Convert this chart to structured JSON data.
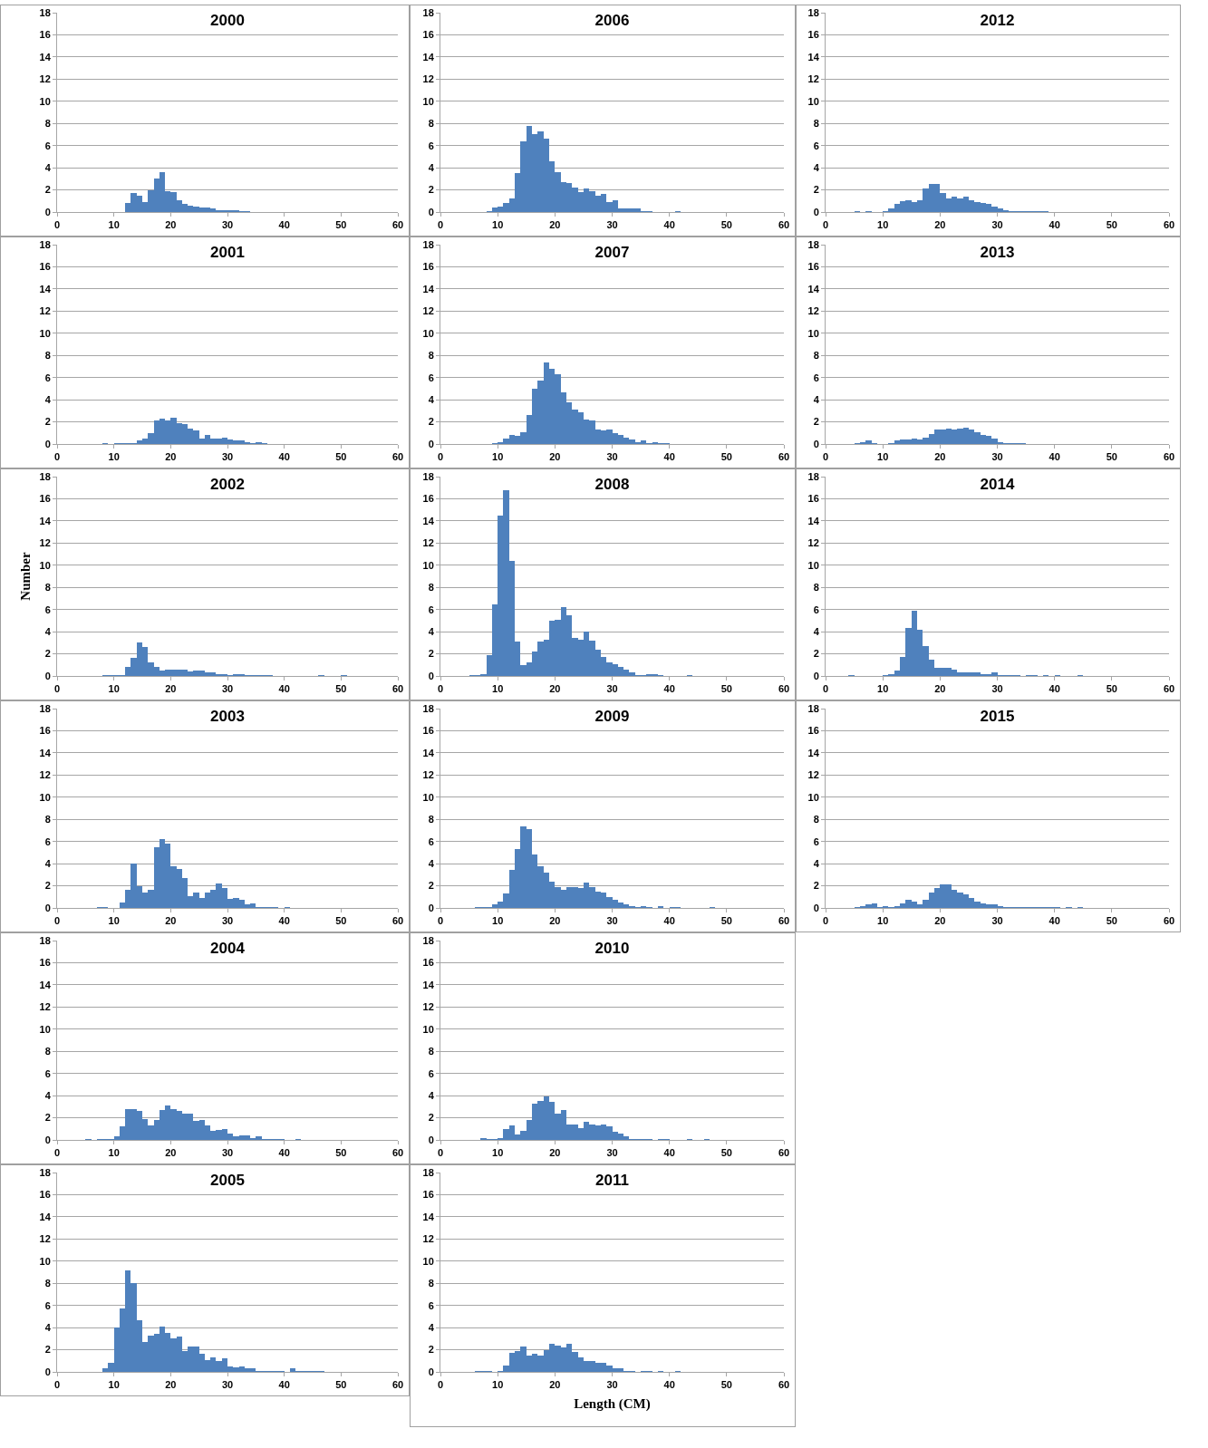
{
  "chart_data": [
    {
      "type": "histogram",
      "title": "2000",
      "bins": [
        0,
        1,
        2,
        3,
        4,
        5,
        6,
        7,
        8,
        9,
        10,
        11,
        12,
        13,
        14,
        15,
        16,
        17,
        18,
        19,
        20,
        21,
        22,
        23,
        24,
        25,
        26,
        27,
        28,
        29,
        30,
        31,
        32,
        33,
        34,
        35,
        36,
        37,
        38,
        39,
        40,
        41,
        42,
        43,
        44,
        45,
        46,
        47,
        48,
        49,
        50,
        51,
        52,
        53,
        54,
        55,
        56,
        57,
        58,
        59,
        60
      ],
      "values": [
        0,
        0,
        0,
        0,
        0,
        0,
        0,
        0,
        0,
        0,
        0,
        0,
        0.8,
        1.7,
        1.5,
        0.9,
        2.0,
        3.0,
        3.6,
        1.9,
        1.8,
        1.1,
        0.7,
        0.6,
        0.5,
        0.4,
        0.4,
        0.3,
        0.2,
        0.2,
        0.2,
        0.2,
        0.1,
        0.1,
        0,
        0,
        0,
        0,
        0,
        0,
        0,
        0,
        0,
        0,
        0,
        0,
        0,
        0,
        0,
        0,
        0,
        0,
        0,
        0,
        0,
        0,
        0,
        0,
        0,
        0
      ],
      "color": "#4f81bd",
      "xlim": [
        0,
        60
      ],
      "xticks": [
        0,
        10,
        20,
        30,
        40,
        50,
        60
      ],
      "ylim": [
        0,
        18
      ],
      "yticks": [
        0,
        2,
        4,
        6,
        8,
        10,
        12,
        14,
        16,
        18
      ],
      "grid": "y"
    },
    {
      "type": "histogram",
      "title": "2001",
      "bins": [
        0,
        1,
        2,
        3,
        4,
        5,
        6,
        7,
        8,
        9,
        10,
        11,
        12,
        13,
        14,
        15,
        16,
        17,
        18,
        19,
        20,
        21,
        22,
        23,
        24,
        25,
        26,
        27,
        28,
        29,
        30,
        31,
        32,
        33,
        34,
        35,
        36,
        37,
        38,
        39,
        40,
        41,
        42,
        43,
        44,
        45,
        46,
        47,
        48,
        49,
        50,
        51,
        52,
        53,
        54,
        55,
        56,
        57,
        58,
        59,
        60
      ],
      "values": [
        0,
        0,
        0,
        0,
        0,
        0,
        0,
        0,
        0.05,
        0,
        0.05,
        0.05,
        0.1,
        0.05,
        0.3,
        0.5,
        1.0,
        2.1,
        2.3,
        2.1,
        2.4,
        1.9,
        1.8,
        1.4,
        1.2,
        0.5,
        0.8,
        0.5,
        0.5,
        0.6,
        0.4,
        0.3,
        0.3,
        0.2,
        0.05,
        0.15,
        0.05,
        0,
        0,
        0,
        0,
        0,
        0,
        0,
        0,
        0,
        0,
        0,
        0,
        0,
        0,
        0,
        0,
        0,
        0,
        0,
        0,
        0,
        0,
        0
      ],
      "color": "#4f81bd",
      "xlim": [
        0,
        60
      ],
      "xticks": [
        0,
        10,
        20,
        30,
        40,
        50,
        60
      ],
      "ylim": [
        0,
        18
      ],
      "yticks": [
        0,
        2,
        4,
        6,
        8,
        10,
        12,
        14,
        16,
        18
      ],
      "grid": "y"
    },
    {
      "type": "histogram",
      "title": "2002",
      "ylabel": "Number",
      "bins": [
        0,
        1,
        2,
        3,
        4,
        5,
        6,
        7,
        8,
        9,
        10,
        11,
        12,
        13,
        14,
        15,
        16,
        17,
        18,
        19,
        20,
        21,
        22,
        23,
        24,
        25,
        26,
        27,
        28,
        29,
        30,
        31,
        32,
        33,
        34,
        35,
        36,
        37,
        38,
        39,
        40,
        41,
        42,
        43,
        44,
        45,
        46,
        47,
        48,
        49,
        50,
        51,
        52,
        53,
        54,
        55,
        56,
        57,
        58,
        59,
        60
      ],
      "values": [
        0,
        0,
        0,
        0,
        0,
        0,
        0,
        0,
        0.05,
        0.05,
        0.05,
        0.1,
        0.8,
        1.6,
        3.0,
        2.6,
        1.2,
        0.8,
        0.5,
        0.6,
        0.6,
        0.6,
        0.6,
        0.4,
        0.5,
        0.5,
        0.3,
        0.3,
        0.2,
        0.2,
        0.1,
        0.2,
        0.2,
        0.1,
        0.1,
        0.05,
        0.05,
        0.05,
        0,
        0,
        0,
        0,
        0,
        0,
        0,
        0,
        0.05,
        0,
        0,
        0,
        0.05,
        0,
        0,
        0,
        0,
        0,
        0,
        0,
        0,
        0
      ],
      "color": "#4f81bd",
      "xlim": [
        0,
        60
      ],
      "xticks": [
        0,
        10,
        20,
        30,
        40,
        50,
        60
      ],
      "ylim": [
        0,
        18
      ],
      "yticks": [
        0,
        2,
        4,
        6,
        8,
        10,
        12,
        14,
        16,
        18
      ],
      "grid": "y"
    },
    {
      "type": "histogram",
      "title": "2003",
      "bins": [
        0,
        1,
        2,
        3,
        4,
        5,
        6,
        7,
        8,
        9,
        10,
        11,
        12,
        13,
        14,
        15,
        16,
        17,
        18,
        19,
        20,
        21,
        22,
        23,
        24,
        25,
        26,
        27,
        28,
        29,
        30,
        31,
        32,
        33,
        34,
        35,
        36,
        37,
        38,
        39,
        40,
        41,
        42,
        43,
        44,
        45,
        46,
        47,
        48,
        49,
        50,
        51,
        52,
        53,
        54,
        55,
        56,
        57,
        58,
        59,
        60
      ],
      "values": [
        0,
        0,
        0,
        0,
        0,
        0,
        0,
        0.05,
        0.1,
        0,
        0,
        0.5,
        1.6,
        4.0,
        2.0,
        1.4,
        1.6,
        5.5,
        6.2,
        5.8,
        3.8,
        3.5,
        2.7,
        1.1,
        1.4,
        0.9,
        1.4,
        1.6,
        2.2,
        1.8,
        0.8,
        0.9,
        0.7,
        0.3,
        0.4,
        0.1,
        0.1,
        0.05,
        0.1,
        0,
        0.05,
        0,
        0,
        0,
        0,
        0,
        0,
        0,
        0,
        0,
        0,
        0,
        0,
        0,
        0,
        0,
        0,
        0,
        0,
        0
      ],
      "color": "#4f81bd",
      "xlim": [
        0,
        60
      ],
      "xticks": [
        0,
        10,
        20,
        30,
        40,
        50,
        60
      ],
      "ylim": [
        0,
        18
      ],
      "yticks": [
        0,
        2,
        4,
        6,
        8,
        10,
        12,
        14,
        16,
        18
      ],
      "grid": "y"
    },
    {
      "type": "histogram",
      "title": "2004",
      "bins": [
        0,
        1,
        2,
        3,
        4,
        5,
        6,
        7,
        8,
        9,
        10,
        11,
        12,
        13,
        14,
        15,
        16,
        17,
        18,
        19,
        20,
        21,
        22,
        23,
        24,
        25,
        26,
        27,
        28,
        29,
        30,
        31,
        32,
        33,
        34,
        35,
        36,
        37,
        38,
        39,
        40,
        41,
        42,
        43,
        44,
        45,
        46,
        47,
        48,
        49,
        50,
        51,
        52,
        53,
        54,
        55,
        56,
        57,
        58,
        59,
        60
      ],
      "values": [
        0,
        0,
        0,
        0,
        0,
        0.05,
        0,
        0.1,
        0.1,
        0.1,
        0.3,
        1.2,
        2.8,
        2.8,
        2.6,
        1.9,
        1.3,
        1.8,
        2.7,
        3.1,
        2.8,
        2.6,
        2.4,
        2.4,
        1.7,
        1.8,
        1.3,
        0.8,
        0.9,
        1.0,
        0.6,
        0.3,
        0.4,
        0.4,
        0.2,
        0.3,
        0.1,
        0.05,
        0.05,
        0.05,
        0,
        0,
        0.05,
        0,
        0,
        0,
        0,
        0,
        0,
        0,
        0,
        0,
        0,
        0,
        0,
        0,
        0,
        0,
        0,
        0
      ],
      "color": "#4f81bd",
      "xlim": [
        0,
        60
      ],
      "xticks": [
        0,
        10,
        20,
        30,
        40,
        50,
        60
      ],
      "ylim": [
        0,
        18
      ],
      "yticks": [
        0,
        2,
        4,
        6,
        8,
        10,
        12,
        14,
        16,
        18
      ],
      "grid": "y"
    },
    {
      "type": "histogram",
      "title": "2005",
      "bins": [
        0,
        1,
        2,
        3,
        4,
        5,
        6,
        7,
        8,
        9,
        10,
        11,
        12,
        13,
        14,
        15,
        16,
        17,
        18,
        19,
        20,
        21,
        22,
        23,
        24,
        25,
        26,
        27,
        28,
        29,
        30,
        31,
        32,
        33,
        34,
        35,
        36,
        37,
        38,
        39,
        40,
        41,
        42,
        43,
        44,
        45,
        46,
        47,
        48,
        49,
        50,
        51,
        52,
        53,
        54,
        55,
        56,
        57,
        58,
        59,
        60
      ],
      "values": [
        0,
        0,
        0,
        0,
        0,
        0,
        0,
        0,
        0.3,
        0.8,
        4.0,
        5.7,
        9.2,
        8.0,
        4.7,
        2.7,
        3.3,
        3.4,
        4.1,
        3.5,
        3.0,
        3.2,
        1.9,
        2.3,
        2.3,
        1.6,
        1.1,
        1.3,
        1.0,
        1.2,
        0.5,
        0.4,
        0.5,
        0.3,
        0.3,
        0.05,
        0.05,
        0.1,
        0.05,
        0.05,
        0,
        0.3,
        0.1,
        0.05,
        0.1,
        0.1,
        0.05,
        0,
        0,
        0,
        0,
        0,
        0,
        0,
        0,
        0,
        0,
        0,
        0,
        0
      ],
      "color": "#4f81bd",
      "xlim": [
        0,
        60
      ],
      "xticks": [
        0,
        10,
        20,
        30,
        40,
        50,
        60
      ],
      "ylim": [
        0,
        18
      ],
      "yticks": [
        0,
        2,
        4,
        6,
        8,
        10,
        12,
        14,
        16,
        18
      ],
      "grid": "y"
    },
    {
      "type": "histogram",
      "title": "2006",
      "bins": [
        0,
        1,
        2,
        3,
        4,
        5,
        6,
        7,
        8,
        9,
        10,
        11,
        12,
        13,
        14,
        15,
        16,
        17,
        18,
        19,
        20,
        21,
        22,
        23,
        24,
        25,
        26,
        27,
        28,
        29,
        30,
        31,
        32,
        33,
        34,
        35,
        36,
        37,
        38,
        39,
        40,
        41,
        42,
        43,
        44,
        45,
        46,
        47,
        48,
        49,
        50,
        51,
        52,
        53,
        54,
        55,
        56,
        57,
        58,
        59,
        60
      ],
      "values": [
        0,
        0,
        0,
        0,
        0,
        0,
        0,
        0,
        0.1,
        0.4,
        0.5,
        0.8,
        1.2,
        3.5,
        6.4,
        7.8,
        7.0,
        7.3,
        6.6,
        4.6,
        3.6,
        2.7,
        2.6,
        2.2,
        1.8,
        2.1,
        1.9,
        1.5,
        1.6,
        0.9,
        1.1,
        0.3,
        0.3,
        0.3,
        0.3,
        0.1,
        0.05,
        0,
        0,
        0,
        0,
        0.1,
        0,
        0,
        0,
        0,
        0,
        0,
        0,
        0,
        0,
        0,
        0,
        0,
        0,
        0,
        0,
        0,
        0,
        0
      ],
      "color": "#4f81bd",
      "xlim": [
        0,
        60
      ],
      "xticks": [
        0,
        10,
        20,
        30,
        40,
        50,
        60
      ],
      "ylim": [
        0,
        18
      ],
      "yticks": [
        0,
        2,
        4,
        6,
        8,
        10,
        12,
        14,
        16,
        18
      ],
      "grid": "y"
    },
    {
      "type": "histogram",
      "title": "2007",
      "bins": [
        0,
        1,
        2,
        3,
        4,
        5,
        6,
        7,
        8,
        9,
        10,
        11,
        12,
        13,
        14,
        15,
        16,
        17,
        18,
        19,
        20,
        21,
        22,
        23,
        24,
        25,
        26,
        27,
        28,
        29,
        30,
        31,
        32,
        33,
        34,
        35,
        36,
        37,
        38,
        39,
        40,
        41,
        42,
        43,
        44,
        45,
        46,
        47,
        48,
        49,
        50,
        51,
        52,
        53,
        54,
        55,
        56,
        57,
        58,
        59,
        60
      ],
      "values": [
        0,
        0,
        0,
        0,
        0,
        0,
        0,
        0,
        0,
        0.05,
        0.2,
        0.5,
        0.8,
        0.7,
        1.1,
        2.6,
        5.0,
        5.7,
        7.4,
        6.8,
        6.3,
        4.7,
        3.8,
        3.1,
        2.9,
        2.2,
        2.1,
        1.3,
        1.2,
        1.3,
        1.0,
        0.8,
        0.6,
        0.4,
        0.2,
        0.3,
        0.1,
        0.2,
        0.05,
        0.05,
        0,
        0,
        0,
        0,
        0,
        0,
        0,
        0,
        0,
        0,
        0,
        0,
        0,
        0,
        0,
        0,
        0,
        0,
        0,
        0
      ],
      "color": "#4f81bd",
      "xlim": [
        0,
        60
      ],
      "xticks": [
        0,
        10,
        20,
        30,
        40,
        50,
        60
      ],
      "ylim": [
        0,
        18
      ],
      "yticks": [
        0,
        2,
        4,
        6,
        8,
        10,
        12,
        14,
        16,
        18
      ],
      "grid": "y"
    },
    {
      "type": "histogram",
      "title": "2008",
      "bins": [
        0,
        1,
        2,
        3,
        4,
        5,
        6,
        7,
        8,
        9,
        10,
        11,
        12,
        13,
        14,
        15,
        16,
        17,
        18,
        19,
        20,
        21,
        22,
        23,
        24,
        25,
        26,
        27,
        28,
        29,
        30,
        31,
        32,
        33,
        34,
        35,
        36,
        37,
        38,
        39,
        40,
        41,
        42,
        43,
        44,
        45,
        46,
        47,
        48,
        49,
        50,
        51,
        52,
        53,
        54,
        55,
        56,
        57,
        58,
        59,
        60
      ],
      "values": [
        0,
        0,
        0,
        0,
        0,
        0.05,
        0.1,
        0.2,
        1.9,
        6.5,
        14.5,
        16.8,
        10.4,
        3.1,
        1.0,
        1.2,
        2.2,
        3.1,
        3.3,
        5.0,
        5.1,
        6.2,
        5.5,
        3.4,
        3.3,
        4.0,
        3.2,
        2.4,
        1.7,
        1.2,
        1.1,
        0.8,
        0.6,
        0.3,
        0.05,
        0.1,
        0.2,
        0.2,
        0.05,
        0,
        0,
        0,
        0,
        0.05,
        0,
        0,
        0,
        0,
        0,
        0,
        0,
        0,
        0,
        0,
        0,
        0,
        0,
        0,
        0,
        0
      ],
      "color": "#4f81bd",
      "xlim": [
        0,
        60
      ],
      "xticks": [
        0,
        10,
        20,
        30,
        40,
        50,
        60
      ],
      "ylim": [
        0,
        18
      ],
      "yticks": [
        0,
        2,
        4,
        6,
        8,
        10,
        12,
        14,
        16,
        18
      ],
      "grid": "y"
    },
    {
      "type": "histogram",
      "title": "2009",
      "bins": [
        0,
        1,
        2,
        3,
        4,
        5,
        6,
        7,
        8,
        9,
        10,
        11,
        12,
        13,
        14,
        15,
        16,
        17,
        18,
        19,
        20,
        21,
        22,
        23,
        24,
        25,
        26,
        27,
        28,
        29,
        30,
        31,
        32,
        33,
        34,
        35,
        36,
        37,
        38,
        39,
        40,
        41,
        42,
        43,
        44,
        45,
        46,
        47,
        48,
        49,
        50,
        51,
        52,
        53,
        54,
        55,
        56,
        57,
        58,
        59,
        60
      ],
      "values": [
        0,
        0,
        0,
        0,
        0,
        0,
        0.05,
        0.1,
        0.1,
        0.3,
        0.6,
        1.3,
        3.4,
        5.3,
        7.4,
        7.1,
        4.8,
        3.8,
        3.2,
        2.4,
        1.9,
        1.6,
        1.9,
        1.9,
        1.8,
        2.3,
        1.9,
        1.5,
        1.4,
        1.0,
        0.7,
        0.5,
        0.3,
        0.2,
        0.1,
        0.2,
        0.05,
        0,
        0.2,
        0,
        0.05,
        0.05,
        0,
        0,
        0,
        0,
        0,
        0.05,
        0,
        0,
        0,
        0,
        0,
        0,
        0,
        0,
        0,
        0,
        0,
        0
      ],
      "color": "#4f81bd",
      "xlim": [
        0,
        60
      ],
      "xticks": [
        0,
        10,
        20,
        30,
        40,
        50,
        60
      ],
      "ylim": [
        0,
        18
      ],
      "yticks": [
        0,
        2,
        4,
        6,
        8,
        10,
        12,
        14,
        16,
        18
      ],
      "grid": "y"
    },
    {
      "type": "histogram",
      "title": "2010",
      "bins": [
        0,
        1,
        2,
        3,
        4,
        5,
        6,
        7,
        8,
        9,
        10,
        11,
        12,
        13,
        14,
        15,
        16,
        17,
        18,
        19,
        20,
        21,
        22,
        23,
        24,
        25,
        26,
        27,
        28,
        29,
        30,
        31,
        32,
        33,
        34,
        35,
        36,
        37,
        38,
        39,
        40,
        41,
        42,
        43,
        44,
        45,
        46,
        47,
        48,
        49,
        50,
        51,
        52,
        53,
        54,
        55,
        56,
        57,
        58,
        59,
        60
      ],
      "values": [
        0,
        0,
        0,
        0,
        0,
        0,
        0,
        0.2,
        0.05,
        0.1,
        0.2,
        1.0,
        1.3,
        0.5,
        0.8,
        1.8,
        3.3,
        3.5,
        3.9,
        3.4,
        2.4,
        2.7,
        1.4,
        1.4,
        1.1,
        1.6,
        1.4,
        1.3,
        1.4,
        1.2,
        0.7,
        0.6,
        0.3,
        0.1,
        0.05,
        0.05,
        0.05,
        0,
        0.05,
        0.05,
        0,
        0,
        0,
        0.05,
        0,
        0,
        0.05,
        0,
        0,
        0,
        0,
        0,
        0,
        0,
        0,
        0,
        0,
        0,
        0,
        0
      ],
      "color": "#4f81bd",
      "xlim": [
        0,
        60
      ],
      "xticks": [
        0,
        10,
        20,
        30,
        40,
        50,
        60
      ],
      "ylim": [
        0,
        18
      ],
      "yticks": [
        0,
        2,
        4,
        6,
        8,
        10,
        12,
        14,
        16,
        18
      ],
      "grid": "y"
    },
    {
      "type": "histogram",
      "title": "2011",
      "xlabel": "Length (CM)",
      "bins": [
        0,
        1,
        2,
        3,
        4,
        5,
        6,
        7,
        8,
        9,
        10,
        11,
        12,
        13,
        14,
        15,
        16,
        17,
        18,
        19,
        20,
        21,
        22,
        23,
        24,
        25,
        26,
        27,
        28,
        29,
        30,
        31,
        32,
        33,
        34,
        35,
        36,
        37,
        38,
        39,
        40,
        41,
        42,
        43,
        44,
        45,
        46,
        47,
        48,
        49,
        50,
        51,
        52,
        53,
        54,
        55,
        56,
        57,
        58,
        59,
        60
      ],
      "values": [
        0,
        0,
        0,
        0,
        0,
        0,
        0.1,
        0.05,
        0.05,
        0,
        0.1,
        0.6,
        1.7,
        1.9,
        2.3,
        1.5,
        1.6,
        1.5,
        2.0,
        2.5,
        2.4,
        2.2,
        2.5,
        1.8,
        1.3,
        1.0,
        1.0,
        0.8,
        0.8,
        0.6,
        0.3,
        0.3,
        0.1,
        0.05,
        0,
        0.1,
        0.05,
        0,
        0.05,
        0,
        0,
        0.05,
        0,
        0,
        0,
        0,
        0,
        0,
        0,
        0,
        0,
        0,
        0,
        0,
        0,
        0,
        0,
        0,
        0,
        0
      ],
      "color": "#4f81bd",
      "xlim": [
        0,
        60
      ],
      "xticks": [
        0,
        10,
        20,
        30,
        40,
        50,
        60
      ],
      "ylim": [
        0,
        18
      ],
      "yticks": [
        0,
        2,
        4,
        6,
        8,
        10,
        12,
        14,
        16,
        18
      ],
      "grid": "y"
    },
    {
      "type": "histogram",
      "title": "2012",
      "bins": [
        0,
        1,
        2,
        3,
        4,
        5,
        6,
        7,
        8,
        9,
        10,
        11,
        12,
        13,
        14,
        15,
        16,
        17,
        18,
        19,
        20,
        21,
        22,
        23,
        24,
        25,
        26,
        27,
        28,
        29,
        30,
        31,
        32,
        33,
        34,
        35,
        36,
        37,
        38,
        39,
        40,
        41,
        42,
        43,
        44,
        45,
        46,
        47,
        48,
        49,
        50,
        51,
        52,
        53,
        54,
        55,
        56,
        57,
        58,
        59,
        60
      ],
      "values": [
        0,
        0,
        0,
        0,
        0,
        0.05,
        0,
        0.05,
        0,
        0,
        0.05,
        0.3,
        0.7,
        1.0,
        1.1,
        0.9,
        1.1,
        2.1,
        2.5,
        2.5,
        1.7,
        1.2,
        1.4,
        1.2,
        1.4,
        1.1,
        0.9,
        0.8,
        0.7,
        0.5,
        0.3,
        0.2,
        0.05,
        0.1,
        0.05,
        0.05,
        0.05,
        0.05,
        0.05,
        0,
        0,
        0,
        0,
        0,
        0,
        0,
        0,
        0,
        0,
        0,
        0,
        0,
        0,
        0,
        0,
        0,
        0,
        0,
        0,
        0
      ],
      "color": "#4f81bd",
      "xlim": [
        0,
        60
      ],
      "xticks": [
        0,
        10,
        20,
        30,
        40,
        50,
        60
      ],
      "ylim": [
        0,
        18
      ],
      "yticks": [
        0,
        2,
        4,
        6,
        8,
        10,
        12,
        14,
        16,
        18
      ],
      "grid": "y"
    },
    {
      "type": "histogram",
      "title": "2013",
      "bins": [
        0,
        1,
        2,
        3,
        4,
        5,
        6,
        7,
        8,
        9,
        10,
        11,
        12,
        13,
        14,
        15,
        16,
        17,
        18,
        19,
        20,
        21,
        22,
        23,
        24,
        25,
        26,
        27,
        28,
        29,
        30,
        31,
        32,
        33,
        34,
        35,
        36,
        37,
        38,
        39,
        40,
        41,
        42,
        43,
        44,
        45,
        46,
        47,
        48,
        49,
        50,
        51,
        52,
        53,
        54,
        55,
        56,
        57,
        58,
        59,
        60
      ],
      "values": [
        0,
        0,
        0,
        0,
        0,
        0.05,
        0.2,
        0.3,
        0.1,
        0,
        0,
        0.05,
        0.3,
        0.4,
        0.4,
        0.5,
        0.4,
        0.6,
        0.9,
        1.3,
        1.3,
        1.4,
        1.3,
        1.4,
        1.5,
        1.3,
        1.1,
        0.8,
        0.7,
        0.5,
        0.2,
        0.1,
        0.05,
        0.1,
        0.1,
        0,
        0,
        0,
        0,
        0,
        0,
        0,
        0,
        0,
        0,
        0,
        0,
        0,
        0,
        0,
        0,
        0,
        0,
        0,
        0,
        0,
        0,
        0,
        0,
        0
      ],
      "color": "#4f81bd",
      "xlim": [
        0,
        60
      ],
      "xticks": [
        0,
        10,
        20,
        30,
        40,
        50,
        60
      ],
      "ylim": [
        0,
        18
      ],
      "yticks": [
        0,
        2,
        4,
        6,
        8,
        10,
        12,
        14,
        16,
        18
      ],
      "grid": "y"
    },
    {
      "type": "histogram",
      "title": "2014",
      "bins": [
        0,
        1,
        2,
        3,
        4,
        5,
        6,
        7,
        8,
        9,
        10,
        11,
        12,
        13,
        14,
        15,
        16,
        17,
        18,
        19,
        20,
        21,
        22,
        23,
        24,
        25,
        26,
        27,
        28,
        29,
        30,
        31,
        32,
        33,
        34,
        35,
        36,
        37,
        38,
        39,
        40,
        41,
        42,
        43,
        44,
        45,
        46,
        47,
        48,
        49,
        50,
        51,
        52,
        53,
        54,
        55,
        56,
        57,
        58,
        59,
        60
      ],
      "values": [
        0,
        0,
        0,
        0,
        0.05,
        0,
        0,
        0,
        0,
        0,
        0.05,
        0.2,
        0.5,
        1.7,
        4.3,
        5.9,
        4.2,
        2.7,
        1.5,
        0.7,
        0.7,
        0.7,
        0.6,
        0.3,
        0.3,
        0.3,
        0.3,
        0.2,
        0.2,
        0.3,
        0.1,
        0.05,
        0.05,
        0.05,
        0,
        0.05,
        0.05,
        0,
        0.05,
        0,
        0.05,
        0,
        0,
        0,
        0.05,
        0,
        0,
        0,
        0,
        0,
        0,
        0,
        0,
        0,
        0,
        0,
        0,
        0,
        0,
        0
      ],
      "color": "#4f81bd",
      "xlim": [
        0,
        60
      ],
      "xticks": [
        0,
        10,
        20,
        30,
        40,
        50,
        60
      ],
      "ylim": [
        0,
        18
      ],
      "yticks": [
        0,
        2,
        4,
        6,
        8,
        10,
        12,
        14,
        16,
        18
      ],
      "grid": "y"
    },
    {
      "type": "histogram",
      "title": "2015",
      "bins": [
        0,
        1,
        2,
        3,
        4,
        5,
        6,
        7,
        8,
        9,
        10,
        11,
        12,
        13,
        14,
        15,
        16,
        17,
        18,
        19,
        20,
        21,
        22,
        23,
        24,
        25,
        26,
        27,
        28,
        29,
        30,
        31,
        32,
        33,
        34,
        35,
        36,
        37,
        38,
        39,
        40,
        41,
        42,
        43,
        44,
        45,
        46,
        47,
        48,
        49,
        50,
        51,
        52,
        53,
        54,
        55,
        56,
        57,
        58,
        59,
        60
      ],
      "values": [
        0,
        0,
        0,
        0,
        0,
        0.05,
        0.2,
        0.3,
        0.4,
        0.1,
        0.2,
        0.05,
        0.2,
        0.4,
        0.7,
        0.6,
        0.3,
        0.7,
        1.4,
        1.8,
        2.1,
        2.1,
        1.6,
        1.4,
        1.2,
        0.9,
        0.6,
        0.4,
        0.3,
        0.3,
        0.2,
        0.1,
        0.05,
        0.05,
        0.05,
        0.05,
        0.05,
        0.05,
        0.05,
        0.05,
        0.05,
        0,
        0.05,
        0,
        0.05,
        0,
        0,
        0,
        0,
        0,
        0,
        0,
        0,
        0,
        0,
        0,
        0,
        0,
        0,
        0
      ],
      "color": "#4f81bd",
      "xlim": [
        0,
        60
      ],
      "xticks": [
        0,
        10,
        20,
        30,
        40,
        50,
        60
      ],
      "ylim": [
        0,
        18
      ],
      "yticks": [
        0,
        2,
        4,
        6,
        8,
        10,
        12,
        14,
        16,
        18
      ],
      "grid": "y"
    }
  ]
}
